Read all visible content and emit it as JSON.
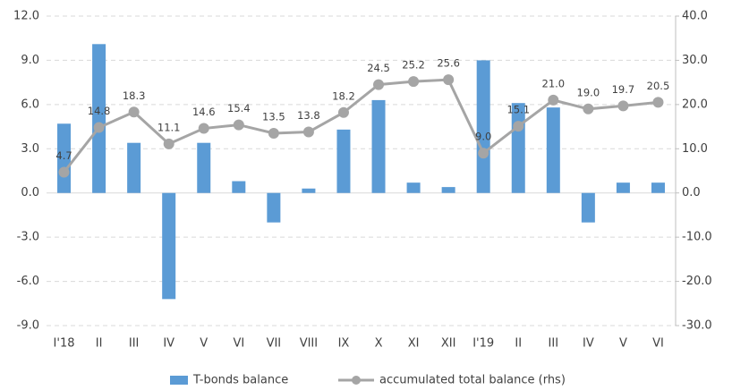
{
  "chart_data": {
    "type": "bar_line",
    "categories": [
      "I'18",
      "II",
      "III",
      "IV",
      "V",
      "VI",
      "VII",
      "VIII",
      "IX",
      "X",
      "XI",
      "XII",
      "I'19",
      "II",
      "III",
      "IV",
      "V",
      "VI"
    ],
    "series": [
      {
        "name": "T-bonds balance",
        "type": "bar",
        "color": "#5b9bd5",
        "axis": "y",
        "values": [
          4.7,
          10.1,
          3.4,
          -7.2,
          3.4,
          0.8,
          -2.0,
          0.3,
          4.3,
          6.3,
          0.7,
          0.4,
          9.0,
          6.1,
          5.8,
          -2.0,
          0.7,
          0.7
        ]
      },
      {
        "name": "accumulated total balance (rhs)",
        "type": "line",
        "color": "#a5a5a5",
        "axis": "y2",
        "values": [
          4.7,
          14.8,
          18.3,
          11.1,
          14.6,
          15.4,
          13.5,
          13.8,
          18.2,
          24.5,
          25.2,
          25.6,
          9.0,
          15.1,
          21.0,
          19.0,
          19.7,
          20.5
        ],
        "value_labels": [
          "4.7",
          "14.8",
          "18.3",
          "11.1",
          "14.6",
          "15.4",
          "13.5",
          "13.8",
          "18.2",
          "24.5",
          "25.2",
          "25.6",
          "9.0",
          "15.1",
          "21.0",
          "19.0",
          "19.7",
          "20.5"
        ]
      }
    ],
    "ylim": [
      -9,
      12
    ],
    "yticks": [
      {
        "value": 12,
        "label": "12.0"
      },
      {
        "value": 9,
        "label": "9.0"
      },
      {
        "value": 6,
        "label": "6.0"
      },
      {
        "value": 3,
        "label": "3.0"
      },
      {
        "value": 0,
        "label": "0.0"
      },
      {
        "value": -3,
        "label": "-3.0"
      },
      {
        "value": -6,
        "label": "-6.0"
      },
      {
        "value": -9,
        "label": "-9.0"
      }
    ],
    "y2lim": [
      -30,
      40
    ],
    "y2ticks": [
      {
        "value": 40,
        "label": "40.0"
      },
      {
        "value": 30,
        "label": "30.0"
      },
      {
        "value": 20,
        "label": "20.0"
      },
      {
        "value": 10,
        "label": "10.0"
      },
      {
        "value": 0,
        "label": "0.0"
      },
      {
        "value": -10,
        "label": "-10.0"
      },
      {
        "value": -20,
        "label": "-20.0"
      },
      {
        "value": -30,
        "label": "-30.0"
      }
    ],
    "grid": true,
    "legend": "bottom"
  }
}
